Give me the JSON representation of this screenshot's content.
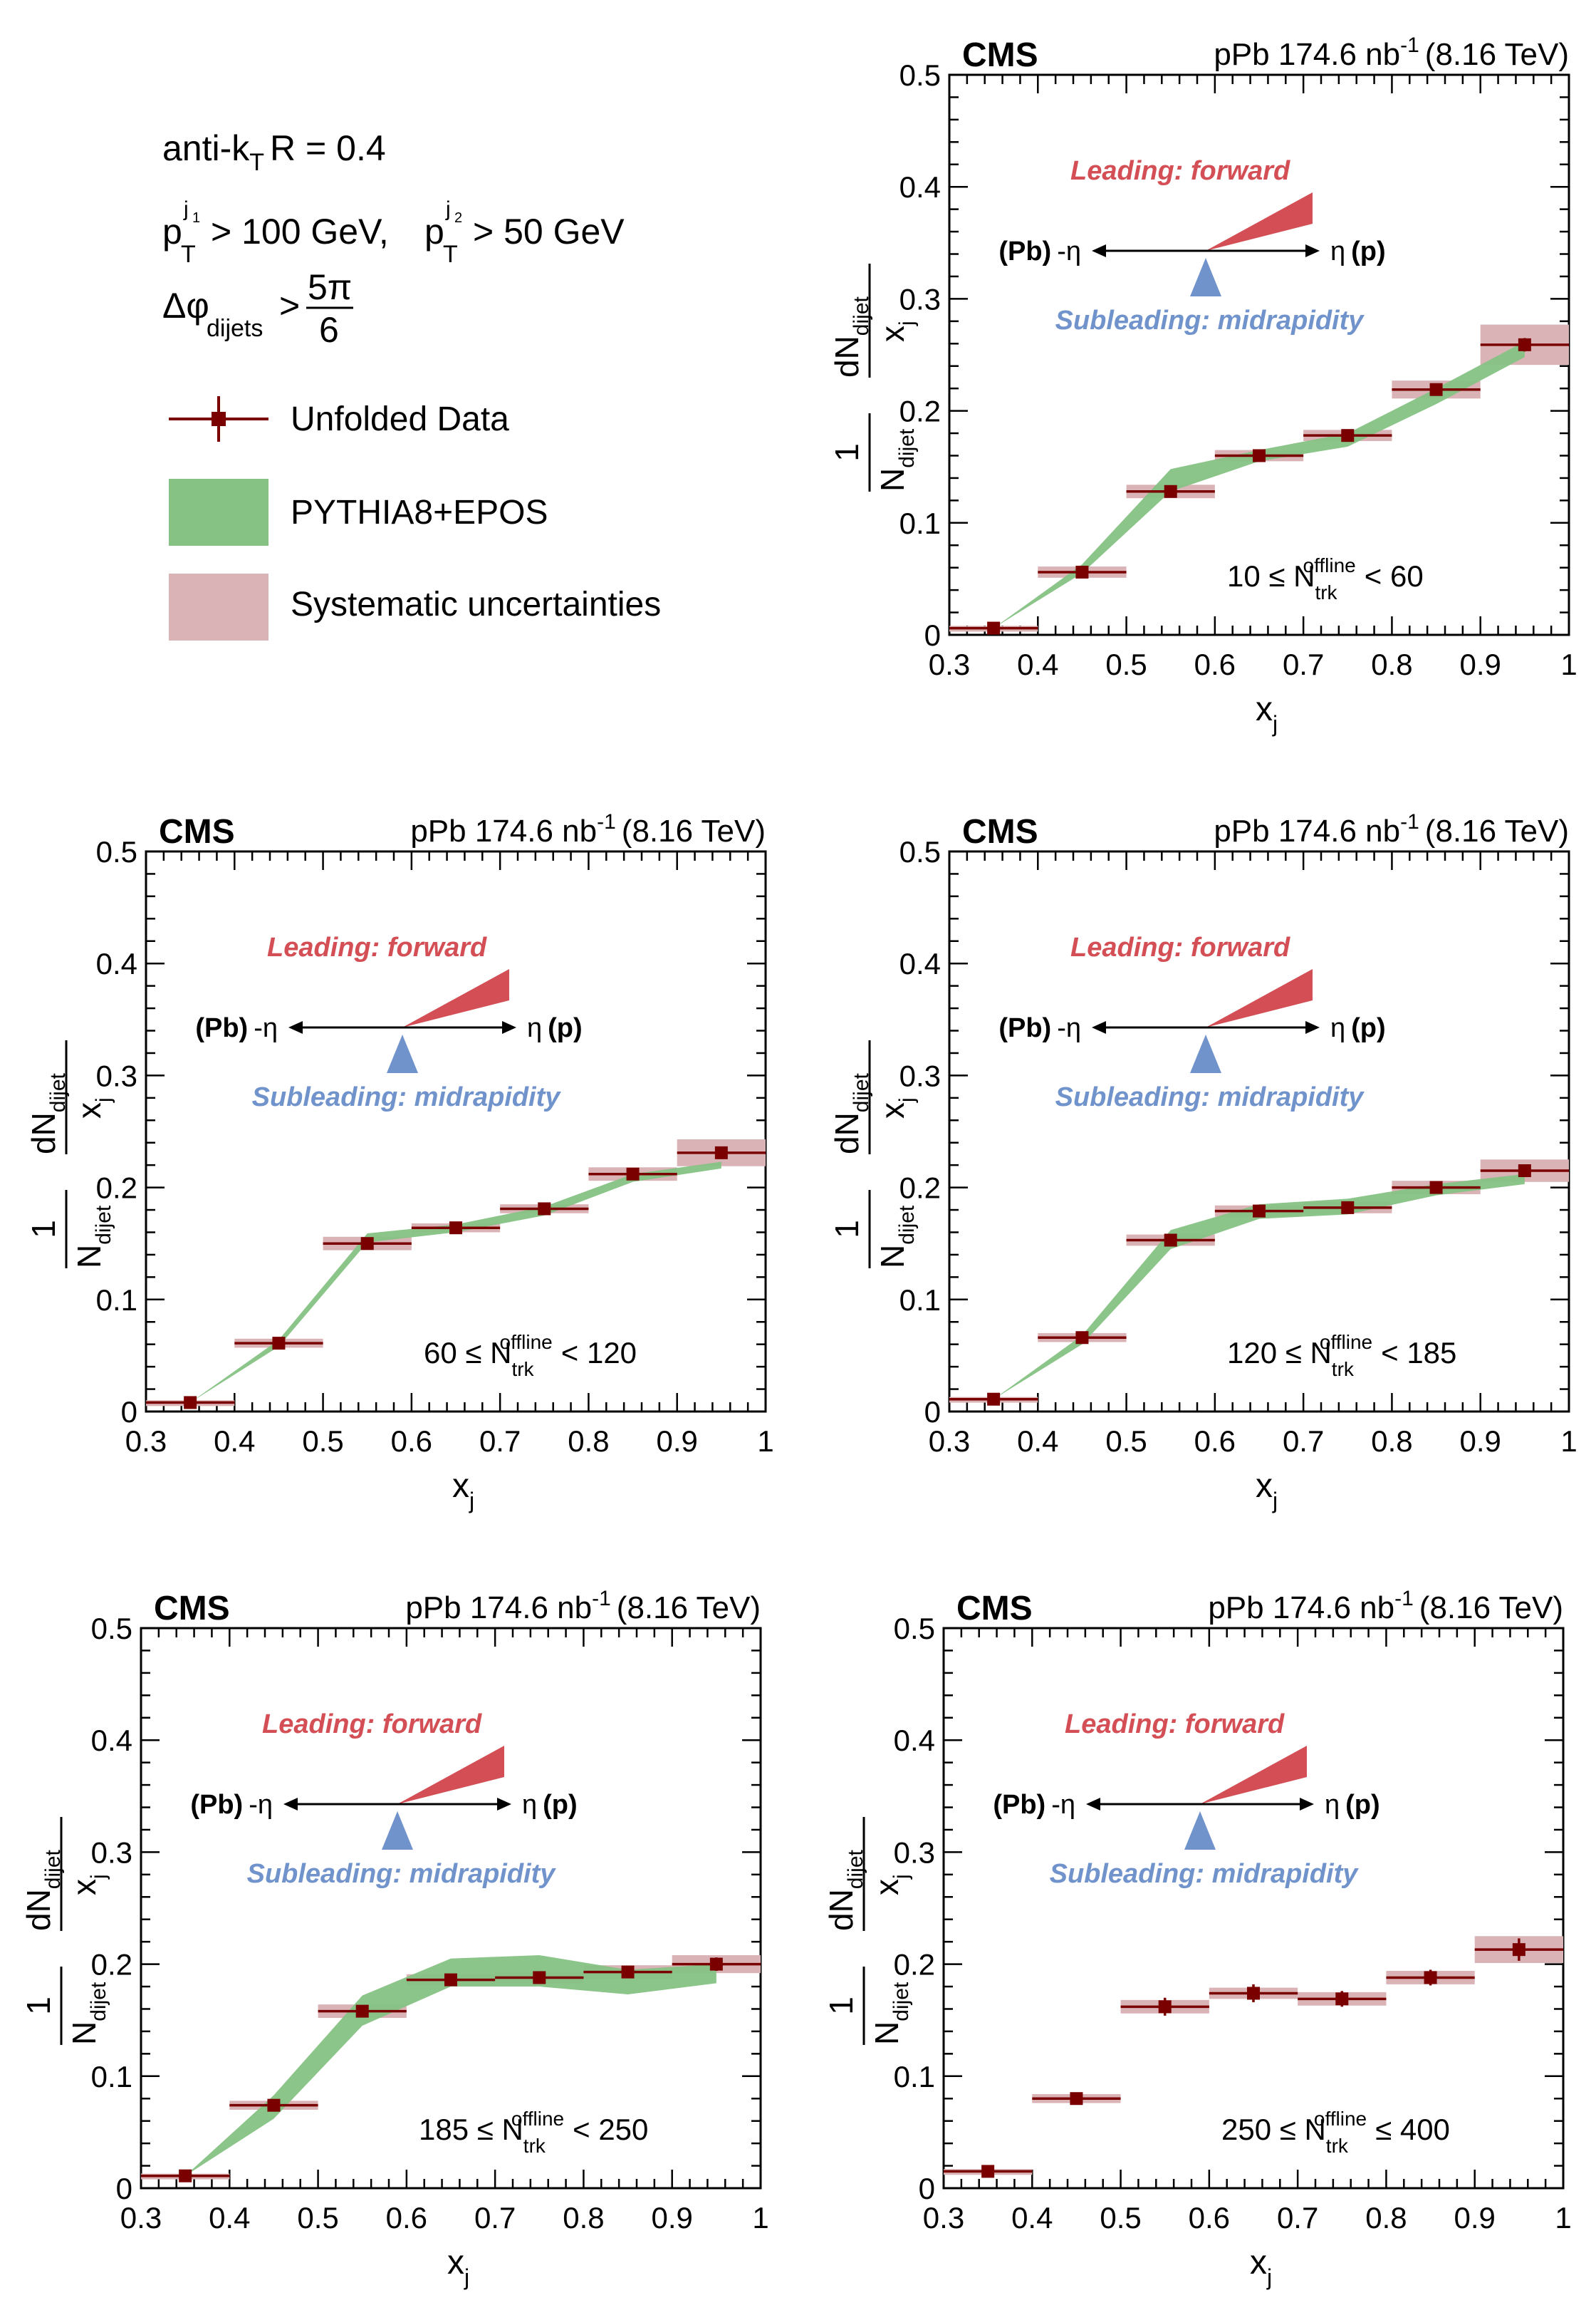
{
  "experiment": "CMS",
  "luminosity": "pPb 174.6 nb",
  "lumi_sup": "-1",
  "energy": "(8.16 TeV)",
  "legend_box": {
    "algo": "anti-k",
    "algo_sub": "T",
    "radius": "R = 0.4",
    "pt_cut_1": "> 100 GeV,",
    "pt_cut_2": "> 50 GeV",
    "pt_sym": "p",
    "pt_sub": "T",
    "pt_sup_1": "j",
    "pt_sup_1b": "1",
    "pt_sup_2": "j",
    "pt_sup_2b": "2",
    "dphi_sym": "Δφ",
    "dphi_sub": "dijets",
    "dphi_op": ">",
    "dphi_num": "5π",
    "dphi_den": "6",
    "entries": [
      {
        "label": "Unfolded Data",
        "color": "#7a0000"
      },
      {
        "label": "PYTHIA8+EPOS",
        "color": "#86c284"
      },
      {
        "label": "Systematic uncertainties",
        "color": "#d9b3b6"
      }
    ]
  },
  "diagram": {
    "leading": "Leading: forward",
    "subleading": "Subleading: midrapidity",
    "left_label_bold": "(Pb)",
    "left_label": "-η",
    "right_label": "η",
    "right_label_bold": "(p)",
    "leading_color": "#d44f55",
    "subleading_color": "#7193cc"
  },
  "axis_labels": {
    "x_main": "x",
    "x_sub": "j",
    "y_one": "1",
    "y_N": "N",
    "y_N_sub": "dijet",
    "y_dN": "dN",
    "y_dN_sub": "dijet",
    "y_den": "x",
    "y_den_sub": "j"
  },
  "colors": {
    "data": "#7a0000",
    "model": "#86c284",
    "syst": "#d9b3b6"
  },
  "chart_data": [
    {
      "type": "scatter",
      "panel": "top-right",
      "range_label": {
        "low": "10 ≤ N",
        "sub": "trk",
        "sup": "offline",
        "high": "< 60"
      },
      "xlim": [
        0.3,
        1.0
      ],
      "ylim": [
        0,
        0.5
      ],
      "x_ticks": [
        "0.3",
        "0.4",
        "0.5",
        "0.6",
        "0.7",
        "0.8",
        "0.9",
        "1"
      ],
      "y_ticks": [
        "0",
        "0.1",
        "0.2",
        "0.3",
        "0.4",
        "0.5"
      ],
      "x": [
        0.35,
        0.45,
        0.55,
        0.65,
        0.75,
        0.85,
        0.95
      ],
      "series": [
        {
          "name": "Unfolded Data",
          "values": [
            0.006,
            0.056,
            0.128,
            0.16,
            0.178,
            0.219,
            0.259
          ],
          "stat_err": [
            0.002,
            0.003,
            0.004,
            0.004,
            0.004,
            0.005,
            0.006
          ],
          "syst_err": [
            0.002,
            0.005,
            0.006,
            0.005,
            0.005,
            0.008,
            0.018
          ]
        },
        {
          "name": "PYTHIA8+EPOS",
          "lower": [
            0.006,
            0.055,
            0.128,
            0.155,
            0.168,
            0.206,
            0.248
          ],
          "upper": [
            0.006,
            0.063,
            0.148,
            0.165,
            0.18,
            0.22,
            0.262
          ]
        }
      ]
    },
    {
      "type": "scatter",
      "panel": "middle-left",
      "range_label": {
        "low": "60 ≤ N",
        "sub": "trk",
        "sup": "offline",
        "high": "< 120"
      },
      "xlim": [
        0.3,
        1.0
      ],
      "ylim": [
        0,
        0.5
      ],
      "x_ticks": [
        "0.3",
        "0.4",
        "0.5",
        "0.6",
        "0.7",
        "0.8",
        "0.9",
        "1"
      ],
      "y_ticks": [
        "0",
        "0.1",
        "0.2",
        "0.3",
        "0.4",
        "0.5"
      ],
      "x": [
        0.35,
        0.45,
        0.55,
        0.65,
        0.75,
        0.85,
        0.95
      ],
      "series": [
        {
          "name": "Unfolded Data",
          "values": [
            0.008,
            0.061,
            0.15,
            0.164,
            0.181,
            0.212,
            0.231
          ],
          "stat_err": [
            0.002,
            0.003,
            0.004,
            0.003,
            0.003,
            0.004,
            0.004
          ],
          "syst_err": [
            0.002,
            0.004,
            0.006,
            0.004,
            0.004,
            0.006,
            0.012
          ]
        },
        {
          "name": "PYTHIA8+EPOS",
          "lower": [
            0.008,
            0.058,
            0.151,
            0.16,
            0.175,
            0.205,
            0.217
          ],
          "upper": [
            0.008,
            0.064,
            0.159,
            0.167,
            0.183,
            0.212,
            0.223
          ]
        }
      ]
    },
    {
      "type": "scatter",
      "panel": "middle-right",
      "range_label": {
        "low": "120 ≤ N",
        "sub": "trk",
        "sup": "offline",
        "high": "< 185"
      },
      "xlim": [
        0.3,
        1.0
      ],
      "ylim": [
        0,
        0.5
      ],
      "x_ticks": [
        "0.3",
        "0.4",
        "0.5",
        "0.6",
        "0.7",
        "0.8",
        "0.9",
        "1"
      ],
      "y_ticks": [
        "0",
        "0.1",
        "0.2",
        "0.3",
        "0.4",
        "0.5"
      ],
      "x": [
        0.35,
        0.45,
        0.55,
        0.65,
        0.75,
        0.85,
        0.95
      ],
      "series": [
        {
          "name": "Unfolded Data",
          "values": [
            0.011,
            0.066,
            0.153,
            0.179,
            0.182,
            0.2,
            0.215
          ],
          "stat_err": [
            0.002,
            0.003,
            0.004,
            0.004,
            0.004,
            0.004,
            0.005
          ],
          "syst_err": [
            0.002,
            0.004,
            0.005,
            0.005,
            0.005,
            0.006,
            0.01
          ]
        },
        {
          "name": "PYTHIA8+EPOS",
          "lower": [
            0.011,
            0.06,
            0.145,
            0.172,
            0.176,
            0.193,
            0.203
          ],
          "upper": [
            0.011,
            0.068,
            0.162,
            0.185,
            0.19,
            0.203,
            0.212
          ]
        }
      ]
    },
    {
      "type": "scatter",
      "panel": "bottom-left",
      "range_label": {
        "low": "185 ≤ N",
        "sub": "trk",
        "sup": "offline",
        "high": "< 250"
      },
      "xlim": [
        0.3,
        1.0
      ],
      "ylim": [
        0,
        0.5
      ],
      "x_ticks": [
        "0.3",
        "0.4",
        "0.5",
        "0.6",
        "0.7",
        "0.8",
        "0.9",
        "1"
      ],
      "y_ticks": [
        "0",
        "0.1",
        "0.2",
        "0.3",
        "0.4",
        "0.5"
      ],
      "x": [
        0.35,
        0.45,
        0.55,
        0.65,
        0.75,
        0.85,
        0.95
      ],
      "series": [
        {
          "name": "Unfolded Data",
          "values": [
            0.011,
            0.074,
            0.158,
            0.186,
            0.188,
            0.193,
            0.2
          ],
          "stat_err": [
            0.002,
            0.004,
            0.005,
            0.005,
            0.005,
            0.005,
            0.006
          ],
          "syst_err": [
            0.002,
            0.004,
            0.006,
            0.005,
            0.005,
            0.006,
            0.008
          ]
        },
        {
          "name": "PYTHIA8+EPOS",
          "lower": [
            0.011,
            0.062,
            0.145,
            0.18,
            0.18,
            0.173,
            0.183
          ],
          "upper": [
            0.011,
            0.083,
            0.172,
            0.205,
            0.208,
            0.195,
            0.2
          ]
        }
      ]
    },
    {
      "type": "scatter",
      "panel": "bottom-right",
      "range_label": {
        "low": "250 ≤ N",
        "sub": "trk",
        "sup": "offline",
        "high": "≤ 400"
      },
      "xlim": [
        0.3,
        1.0
      ],
      "ylim": [
        0,
        0.5
      ],
      "x_ticks": [
        "0.3",
        "0.4",
        "0.5",
        "0.6",
        "0.7",
        "0.8",
        "0.9",
        "1"
      ],
      "y_ticks": [
        "0",
        "0.1",
        "0.2",
        "0.3",
        "0.4",
        "0.5"
      ],
      "x": [
        0.35,
        0.45,
        0.55,
        0.65,
        0.75,
        0.85,
        0.95
      ],
      "series": [
        {
          "name": "Unfolded Data",
          "values": [
            0.015,
            0.08,
            0.162,
            0.174,
            0.169,
            0.188,
            0.213
          ],
          "stat_err": [
            0.003,
            0.005,
            0.008,
            0.008,
            0.007,
            0.007,
            0.01
          ],
          "syst_err": [
            0.002,
            0.004,
            0.006,
            0.005,
            0.006,
            0.006,
            0.012
          ]
        }
      ]
    }
  ]
}
